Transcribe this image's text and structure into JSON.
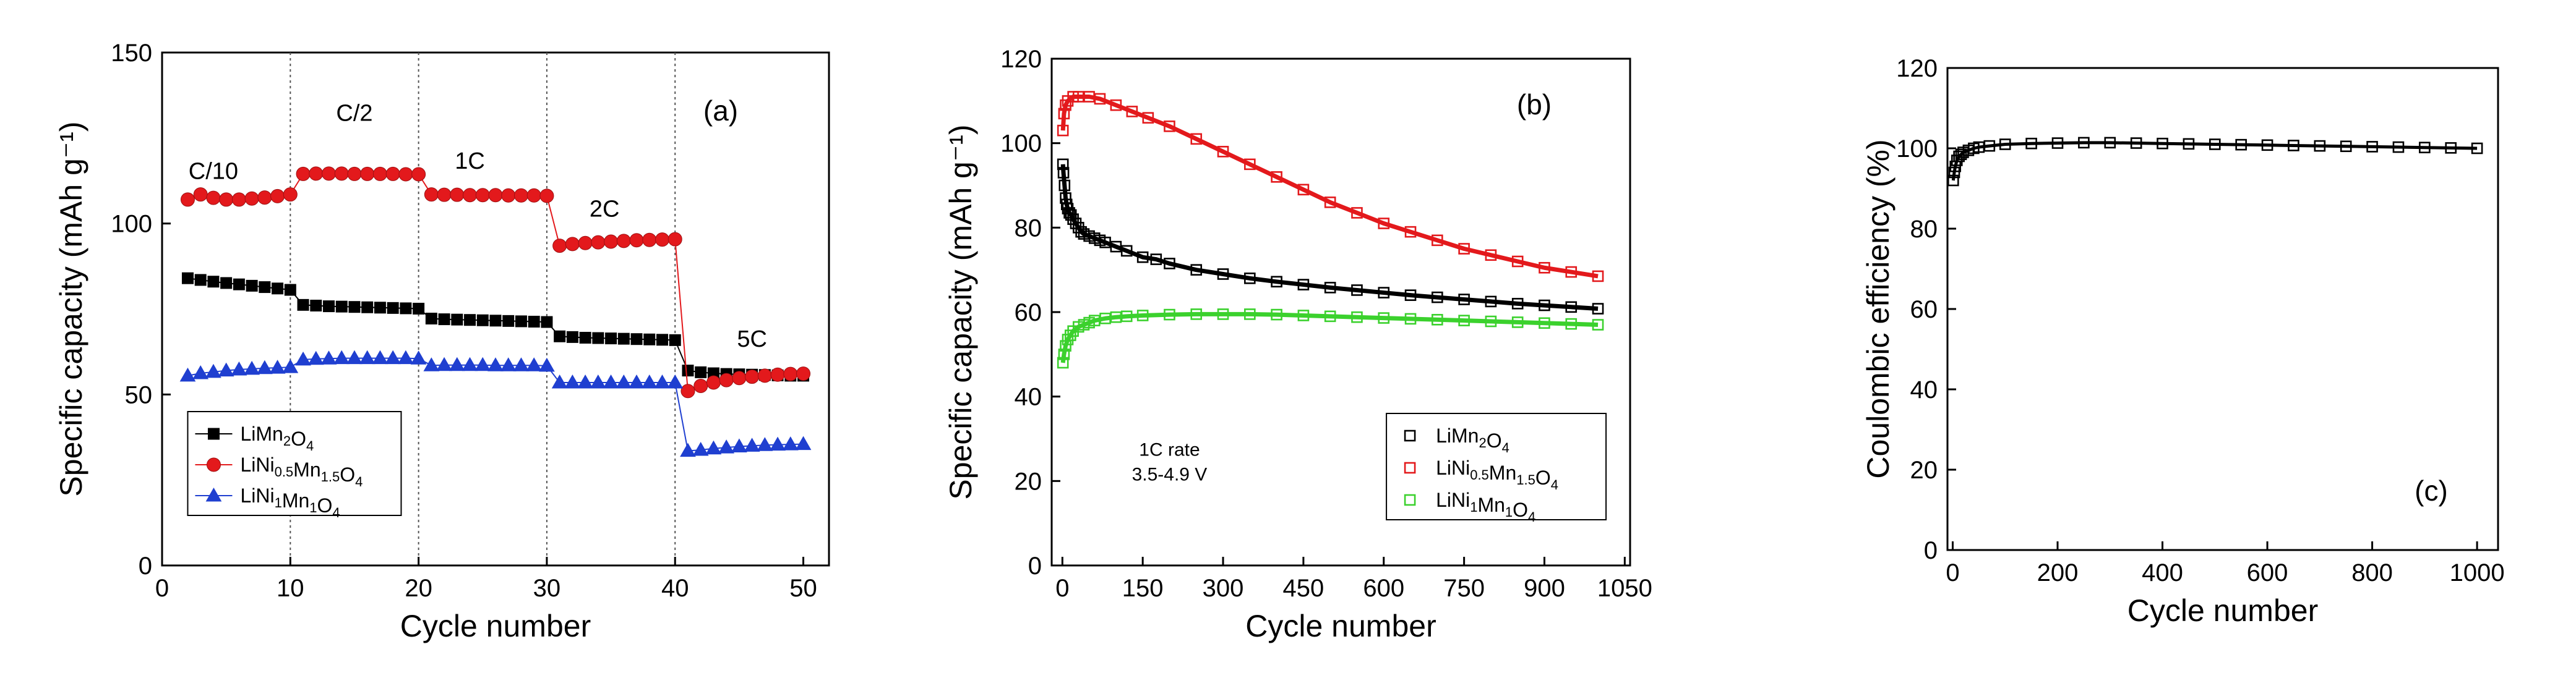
{
  "chart_data": [
    {
      "type": "scatter",
      "panel": "(a)",
      "xlabel": "Cycle number",
      "ylabel": "Specific capacity (mAh g⁻¹)",
      "xlim": [
        0,
        52
      ],
      "ylim": [
        0,
        150
      ],
      "xticks": [
        0,
        10,
        20,
        30,
        40,
        50
      ],
      "yticks": [
        0,
        50,
        100,
        150
      ],
      "grid": false,
      "dividers": [
        10,
        20,
        30,
        40
      ],
      "rate_labels": [
        {
          "text": "C/10",
          "x": 4,
          "y": 113
        },
        {
          "text": "C/2",
          "x": 15,
          "y": 130
        },
        {
          "text": "1C",
          "x": 24,
          "y": 116
        },
        {
          "text": "2C",
          "x": 34.5,
          "y": 102
        },
        {
          "text": "5C",
          "x": 46,
          "y": 64
        }
      ],
      "legend_position": "bottom-left",
      "series": [
        {
          "name": "LiMn2O4",
          "label_main": "LiMn",
          "label_parts": [
            [
              "LiMn",
              ""
            ],
            [
              "2",
              "sub"
            ],
            [
              "O",
              ""
            ],
            [
              "4",
              "sub"
            ]
          ],
          "marker": "square",
          "color": "#000000",
          "x": [
            2,
            3,
            4,
            5,
            6,
            7,
            8,
            9,
            10,
            11,
            12,
            13,
            14,
            15,
            16,
            17,
            18,
            19,
            20,
            21,
            22,
            23,
            24,
            25,
            26,
            27,
            28,
            29,
            30,
            31,
            32,
            33,
            34,
            35,
            36,
            37,
            38,
            39,
            40,
            41,
            42,
            43,
            44,
            45,
            46,
            47,
            48,
            49,
            50
          ],
          "y": [
            84,
            83.5,
            83,
            82.6,
            82.2,
            81.8,
            81.4,
            81,
            80.6,
            76.2,
            76,
            75.8,
            75.7,
            75.6,
            75.5,
            75.4,
            75.3,
            75.2,
            75.1,
            72.2,
            72,
            71.9,
            71.8,
            71.7,
            71.6,
            71.5,
            71.4,
            71.3,
            71.2,
            67,
            66.8,
            66.6,
            66.5,
            66.4,
            66.3,
            66.2,
            66.1,
            66,
            65.9,
            57,
            56.5,
            56.2,
            56,
            55.9,
            55.8,
            55.7,
            55.6,
            55.5,
            55.5
          ]
        },
        {
          "name": "LiNi0.5Mn1.5O4",
          "label_parts": [
            [
              "LiNi",
              ""
            ],
            [
              "0.5",
              "sub"
            ],
            [
              "Mn",
              ""
            ],
            [
              "1.5",
              "sub"
            ],
            [
              "O",
              ""
            ],
            [
              "4",
              "sub"
            ]
          ],
          "marker": "circle",
          "color": "#e3191c",
          "x": [
            2,
            3,
            4,
            5,
            6,
            7,
            8,
            9,
            10,
            11,
            12,
            13,
            14,
            15,
            16,
            17,
            18,
            19,
            20,
            21,
            22,
            23,
            24,
            25,
            26,
            27,
            28,
            29,
            30,
            31,
            32,
            33,
            34,
            35,
            36,
            37,
            38,
            39,
            40,
            41,
            42,
            43,
            44,
            45,
            46,
            47,
            48,
            49,
            50
          ],
          "y": [
            107,
            108.5,
            107.5,
            107,
            107,
            107.3,
            107.6,
            108,
            108.5,
            114.5,
            114.6,
            114.6,
            114.6,
            114.5,
            114.5,
            114.5,
            114.5,
            114.4,
            114.4,
            108.5,
            108.4,
            108.4,
            108.3,
            108.3,
            108.3,
            108.2,
            108.2,
            108.2,
            108.1,
            93.5,
            94,
            94.3,
            94.5,
            94.7,
            94.9,
            95.1,
            95.2,
            95.3,
            95.4,
            51,
            52.5,
            53.5,
            54.2,
            54.8,
            55.2,
            55.5,
            55.8,
            56,
            56.1
          ]
        },
        {
          "name": "LiNi1Mn1O4",
          "label_parts": [
            [
              "LiNi",
              ""
            ],
            [
              "1",
              "sub"
            ],
            [
              "Mn",
              ""
            ],
            [
              "1",
              "sub"
            ],
            [
              "O",
              ""
            ],
            [
              "4",
              "sub"
            ]
          ],
          "marker": "triangle",
          "color": "#1f3fd0",
          "x": [
            2,
            3,
            4,
            5,
            6,
            7,
            8,
            9,
            10,
            11,
            12,
            13,
            14,
            15,
            16,
            17,
            18,
            19,
            20,
            21,
            22,
            23,
            24,
            25,
            26,
            27,
            28,
            29,
            30,
            31,
            32,
            33,
            34,
            35,
            36,
            37,
            38,
            39,
            40,
            41,
            42,
            43,
            44,
            45,
            46,
            47,
            48,
            49,
            50
          ],
          "y": [
            55.5,
            56.2,
            56.6,
            57,
            57.3,
            57.5,
            57.7,
            57.8,
            58,
            60.2,
            60.4,
            60.5,
            60.6,
            60.6,
            60.6,
            60.6,
            60.6,
            60.6,
            60.5,
            58.5,
            58.6,
            58.6,
            58.6,
            58.6,
            58.5,
            58.5,
            58.5,
            58.5,
            58.4,
            53.5,
            53.5,
            53.5,
            53.5,
            53.5,
            53.5,
            53.5,
            53.5,
            53.5,
            53.5,
            33.5,
            33.8,
            34.2,
            34.5,
            34.8,
            35,
            35.2,
            35.3,
            35.4,
            35.5
          ]
        }
      ]
    },
    {
      "type": "scatter",
      "panel": "(b)",
      "xlabel": "Cycle number",
      "ylabel": "Specific capacity (mAh g⁻¹)",
      "xlim": [
        -20,
        1060
      ],
      "ylim": [
        0,
        120
      ],
      "xticks": [
        0,
        150,
        300,
        450,
        600,
        750,
        900,
        1050
      ],
      "yticks": [
        0,
        20,
        40,
        60,
        80,
        100,
        120
      ],
      "grid": false,
      "annotation": [
        "1C rate",
        "3.5-4.9 V"
      ],
      "legend_position": "bottom-right",
      "series": [
        {
          "name": "LiMn2O4",
          "label_parts": [
            [
              "LiMn",
              ""
            ],
            [
              "2",
              "sub"
            ],
            [
              "O",
              ""
            ],
            [
              "4",
              "sub"
            ]
          ],
          "marker": "open-square",
          "color": "#000000",
          "x": [
            1,
            2,
            4,
            6,
            8,
            10,
            13,
            16,
            20,
            25,
            30,
            35,
            40,
            50,
            60,
            70,
            80,
            100,
            120,
            150,
            175,
            200,
            250,
            300,
            350,
            400,
            450,
            500,
            550,
            600,
            650,
            700,
            750,
            800,
            850,
            900,
            950,
            1000
          ],
          "y": [
            95,
            93,
            90,
            87,
            85.5,
            84.5,
            83.5,
            83,
            82,
            81,
            80,
            79,
            78.5,
            78,
            77.5,
            77,
            76.5,
            75.5,
            74.5,
            73,
            72.5,
            71.5,
            70,
            69,
            68,
            67.2,
            66.5,
            65.8,
            65.2,
            64.6,
            64,
            63.5,
            63,
            62.5,
            62,
            61.6,
            61.2,
            60.8
          ]
        },
        {
          "name": "LiNi0.5Mn1.5O4",
          "label_parts": [
            [
              "LiNi",
              ""
            ],
            [
              "0.5",
              "sub"
            ],
            [
              "Mn",
              ""
            ],
            [
              "1.5",
              "sub"
            ],
            [
              "O",
              ""
            ],
            [
              "4",
              "sub"
            ]
          ],
          "marker": "open-square",
          "color": "#e3191c",
          "x": [
            1,
            3,
            6,
            10,
            20,
            30,
            50,
            70,
            100,
            130,
            160,
            200,
            250,
            300,
            350,
            400,
            450,
            500,
            550,
            600,
            650,
            700,
            750,
            800,
            850,
            900,
            950,
            1000
          ],
          "y": [
            103,
            107,
            109,
            110,
            111,
            111,
            111,
            110.5,
            109,
            107.5,
            106,
            104,
            101,
            98,
            95,
            92,
            89,
            86,
            83.5,
            81,
            79,
            77,
            75,
            73.5,
            72,
            70.5,
            69.5,
            68.5
          ]
        },
        {
          "name": "LiNi1Mn1O4",
          "label_parts": [
            [
              "LiNi",
              ""
            ],
            [
              "1",
              "sub"
            ],
            [
              "Mn",
              ""
            ],
            [
              "1",
              "sub"
            ],
            [
              "O",
              ""
            ],
            [
              "4",
              "sub"
            ]
          ],
          "marker": "open-square",
          "color": "#3bd12d",
          "x": [
            1,
            3,
            6,
            10,
            15,
            20,
            30,
            40,
            50,
            60,
            80,
            100,
            120,
            150,
            200,
            250,
            300,
            350,
            400,
            450,
            500,
            550,
            600,
            650,
            700,
            750,
            800,
            850,
            900,
            950,
            1000
          ],
          "y": [
            48,
            50,
            52,
            53.5,
            54.5,
            55.5,
            56.5,
            57,
            57.5,
            58,
            58.5,
            58.8,
            59,
            59.2,
            59.4,
            59.5,
            59.5,
            59.5,
            59.4,
            59.2,
            59,
            58.8,
            58.6,
            58.4,
            58.2,
            58,
            57.8,
            57.6,
            57.4,
            57.2,
            57
          ]
        }
      ]
    },
    {
      "type": "scatter",
      "panel": "(c)",
      "xlabel": "Cycle number",
      "ylabel": "Coulombic efficiency (%)",
      "xlim": [
        -10,
        1040
      ],
      "ylim": [
        0,
        120
      ],
      "xticks": [
        0,
        200,
        400,
        600,
        800,
        1000
      ],
      "yticks": [
        0,
        20,
        40,
        60,
        80,
        100,
        120
      ],
      "grid": false,
      "series": [
        {
          "name": "Coulombic efficiency",
          "marker": "open-square",
          "color": "#000000",
          "x": [
            1,
            3,
            5,
            8,
            12,
            16,
            20,
            30,
            40,
            50,
            70,
            100,
            150,
            200,
            250,
            300,
            350,
            400,
            450,
            500,
            550,
            600,
            650,
            700,
            750,
            800,
            850,
            900,
            950,
            1000
          ],
          "y": [
            92,
            94,
            95.5,
            97,
            98,
            98.5,
            99,
            99.5,
            100,
            100.3,
            100.6,
            101,
            101.2,
            101.3,
            101.4,
            101.4,
            101.3,
            101.2,
            101.1,
            101,
            100.9,
            100.8,
            100.7,
            100.6,
            100.5,
            100.4,
            100.3,
            100.2,
            100.1,
            100
          ]
        }
      ]
    }
  ]
}
